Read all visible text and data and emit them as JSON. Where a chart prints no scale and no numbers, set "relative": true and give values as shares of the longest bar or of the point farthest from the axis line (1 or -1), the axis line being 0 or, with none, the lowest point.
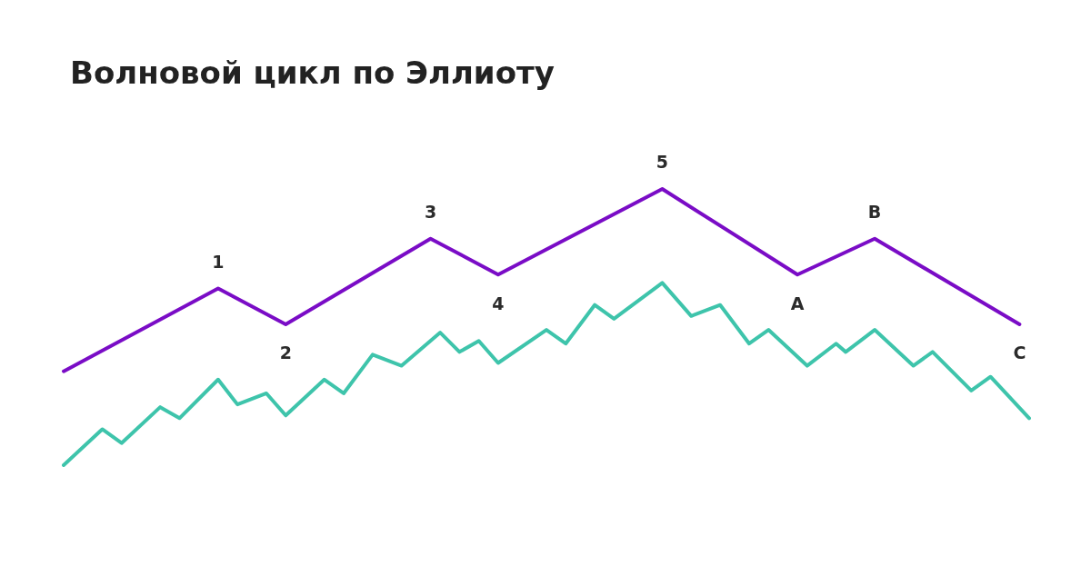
{
  "chart_data": {
    "type": "line",
    "title": "Волновой цикл по Эллиоту",
    "relative": true,
    "annotations": [
      "1",
      "2",
      "3",
      "4",
      "5",
      "A",
      "B",
      "C"
    ],
    "marker": "none",
    "line_style": "solid",
    "categories": [
      null,
      null,
      null,
      null,
      null,
      null,
      null,
      null,
      null,
      null,
      null,
      null,
      null,
      null,
      null,
      null,
      null,
      null,
      null,
      null,
      null,
      null,
      null,
      null,
      null,
      null,
      null,
      null,
      null,
      null,
      null,
      null,
      null,
      null,
      null,
      null,
      null,
      null,
      null,
      null,
      null,
      null,
      null,
      null,
      null,
      null,
      null,
      null,
      null,
      null,
      null,
      null,
      null,
      null,
      null,
      null,
      null,
      null,
      null,
      null,
      null,
      null,
      null,
      null,
      null,
      null,
      null,
      null,
      null,
      null,
      null,
      null,
      null,
      null,
      null,
      null,
      null,
      null,
      null,
      null,
      null,
      null,
      null,
      null,
      null,
      null,
      null,
      null,
      null,
      null,
      null,
      null,
      null,
      null,
      null,
      null,
      null,
      null,
      null,
      null,
      null
    ],
    "series": [
      {
        "color": "#7a0cc6",
        "values": [
          0.34,
          null,
          null,
          null,
          null,
          null,
          null,
          null,
          null,
          null,
          null,
          null,
          null,
          null,
          null,
          null,
          0.64,
          null,
          null,
          null,
          null,
          null,
          null,
          0.51,
          null,
          null,
          null,
          null,
          null,
          null,
          null,
          null,
          null,
          null,
          null,
          null,
          null,
          null,
          0.82,
          null,
          null,
          null,
          null,
          null,
          null,
          0.69,
          null,
          null,
          null,
          null,
          null,
          null,
          null,
          null,
          null,
          null,
          null,
          null,
          null,
          null,
          null,
          null,
          1,
          null,
          null,
          null,
          null,
          null,
          null,
          null,
          null,
          null,
          null,
          null,
          null,
          null,
          0.69,
          null,
          null,
          null,
          null,
          null,
          null,
          null,
          0.82,
          null,
          null,
          null,
          null,
          null,
          null,
          null,
          null,
          null,
          null,
          null,
          null,
          null,
          null,
          0.51,
          null
        ]
      },
      {
        "color": "#3ec4ab",
        "values": [
          0,
          null,
          null,
          null,
          0.13,
          null,
          0.08,
          null,
          null,
          null,
          0.21,
          null,
          0.17,
          null,
          null,
          null,
          0.31,
          null,
          0.22,
          null,
          null,
          0.26,
          null,
          0.18,
          null,
          null,
          null,
          0.31,
          null,
          0.26,
          null,
          null,
          0.4,
          null,
          null,
          0.36,
          null,
          null,
          null,
          0.48,
          null,
          0.41,
          null,
          0.45,
          null,
          0.37,
          null,
          null,
          null,
          null,
          0.49,
          null,
          0.44,
          null,
          null,
          0.58,
          null,
          0.53,
          null,
          null,
          null,
          null,
          0.66,
          null,
          null,
          0.54,
          null,
          null,
          0.58,
          null,
          null,
          0.44,
          null,
          0.49,
          null,
          null,
          null,
          0.36,
          null,
          null,
          0.44,
          0.41,
          null,
          null,
          0.49,
          null,
          null,
          null,
          0.36,
          null,
          0.41,
          null,
          null,
          null,
          0.27,
          null,
          0.32,
          null,
          null,
          null,
          0.17
        ]
      }
    ]
  }
}
